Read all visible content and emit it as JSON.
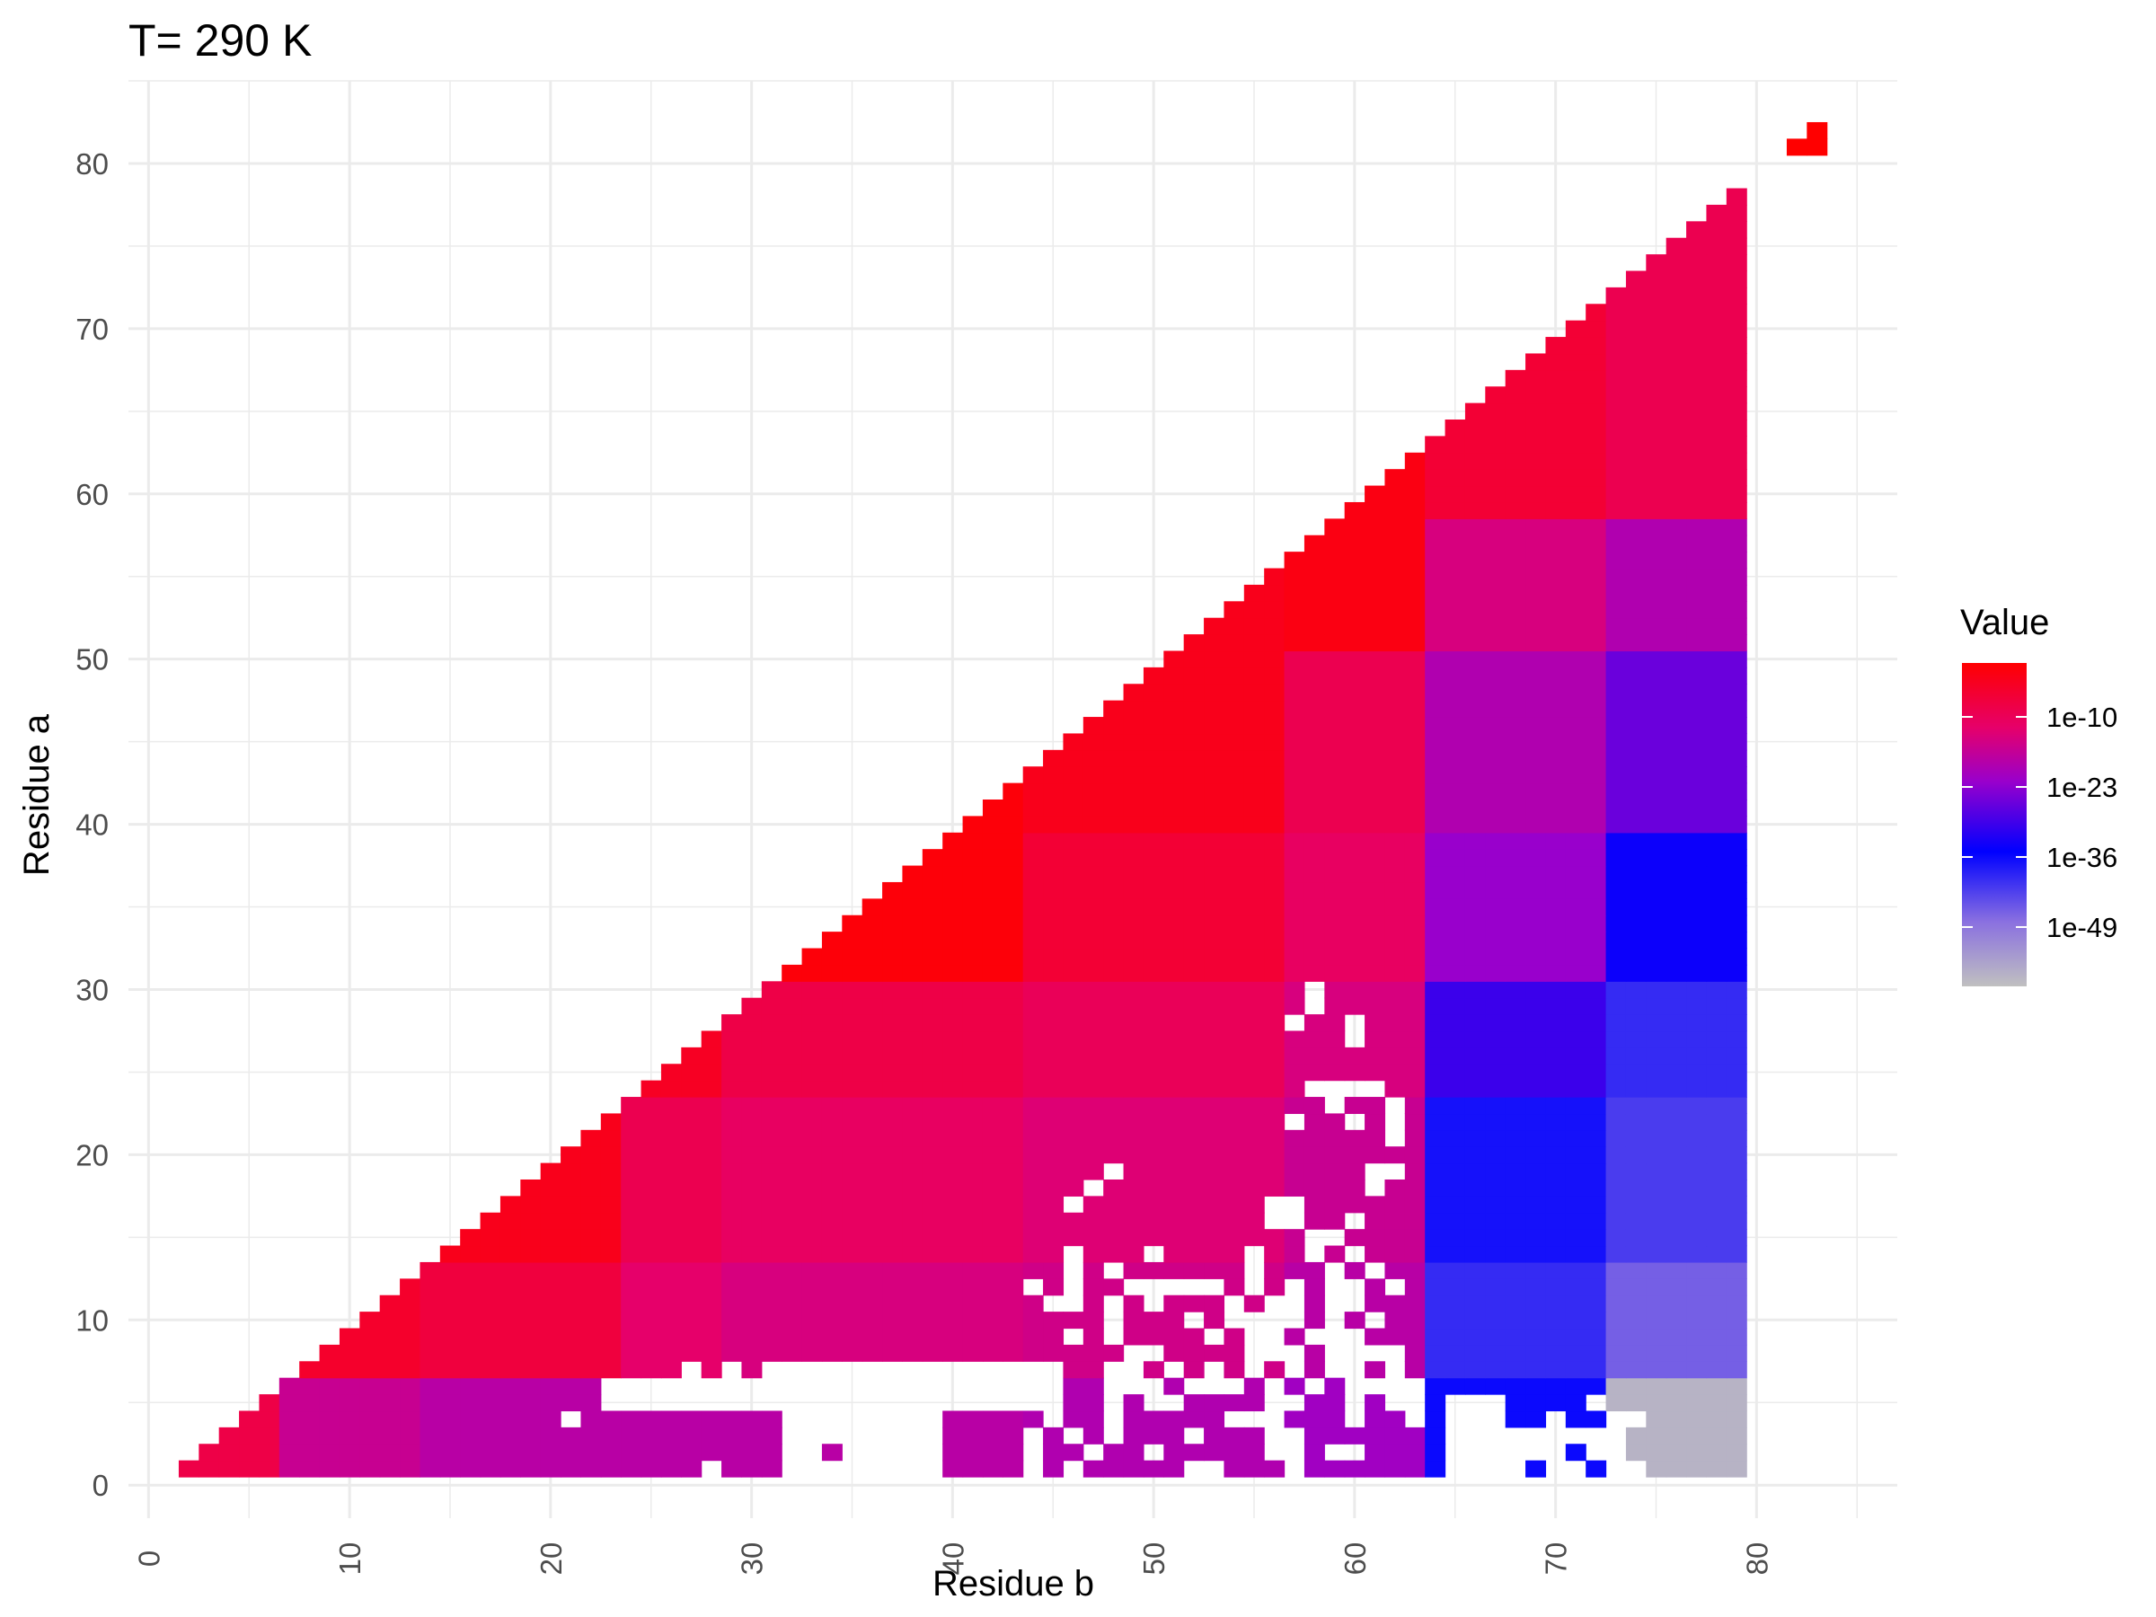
{
  "chart_data": {
    "type": "heatmap",
    "title": "T= 290 K",
    "xlabel": "Residue b",
    "ylabel": "Residue a",
    "xlim": [
      -1,
      87
    ],
    "ylim": [
      -2,
      85
    ],
    "x_ticks": [
      0,
      10,
      20,
      30,
      40,
      50,
      60,
      70,
      80
    ],
    "y_ticks": [
      0,
      10,
      20,
      30,
      40,
      50,
      60,
      70,
      80
    ],
    "grid": true,
    "legend": {
      "title": "Value",
      "position": "right",
      "scale": "log10",
      "labels": [
        "1e-10",
        "1e-23",
        "1e-36",
        "1e-49"
      ],
      "label_log_values": [
        -10,
        -23,
        -36,
        -49
      ],
      "range_log": [
        -60,
        0
      ],
      "gradient_stops": [
        {
          "log_value": 0,
          "color": "#ff0000"
        },
        {
          "log_value": -12,
          "color": "#e6006a"
        },
        {
          "log_value": -22,
          "color": "#9900cc"
        },
        {
          "log_value": -35,
          "color": "#0000ff"
        },
        {
          "log_value": -48,
          "color": "#8a70e0"
        },
        {
          "log_value": -60,
          "color": "#c0c0c0"
        }
      ]
    },
    "cells": {
      "description": "upper-triangular matrix; a from 1 to 78, b from a+1 to 79, plus a single point near (82, 82)",
      "b_max": 79,
      "extra_points": [
        {
          "a": 81,
          "b": 82,
          "log_value": 0
        },
        {
          "a": 82,
          "b": 83,
          "log_value": 0
        },
        {
          "a": 81,
          "b": 83,
          "log_value": 0
        }
      ],
      "rows_a_bands": [
        {
          "a_min": 1,
          "a_max": 6
        },
        {
          "a_min": 7,
          "a_max": 13
        },
        {
          "a_min": 14,
          "a_max": 23
        },
        {
          "a_min": 24,
          "a_max": 30
        },
        {
          "a_min": 31,
          "a_max": 39
        },
        {
          "a_min": 40,
          "a_max": 50
        },
        {
          "a_min": 51,
          "a_max": 58
        },
        {
          "a_min": 59,
          "a_max": 78
        }
      ],
      "cols_b_bands": [
        {
          "b_min": 1,
          "b_max": 6
        },
        {
          "b_min": 7,
          "b_max": 13
        },
        {
          "b_min": 14,
          "b_max": 23
        },
        {
          "b_min": 24,
          "b_max": 28
        },
        {
          "b_min": 29,
          "b_max": 43
        },
        {
          "b_min": 44,
          "b_max": 56
        },
        {
          "b_min": 57,
          "b_max": 63
        },
        {
          "b_min": 64,
          "b_max": 72
        },
        {
          "b_min": 73,
          "b_max": 79
        }
      ],
      "band_log_values": [
        [
          -8,
          -8,
          -8,
          -8,
          -8,
          -8,
          -8,
          -8
        ],
        [
          -16,
          -5,
          -5,
          -5,
          -5,
          -5,
          -5,
          -5
        ],
        [
          -18,
          -7,
          -3,
          -3,
          -3,
          -3,
          -3,
          -3
        ],
        [
          -18,
          -12,
          -9,
          -4,
          -4,
          -4,
          -4,
          -4
        ],
        [
          -18,
          -14,
          -11,
          -8,
          -1,
          -1,
          -1,
          -1
        ],
        [
          -19,
          -15,
          -13,
          -10,
          -6,
          -3,
          -3,
          -3
        ],
        [
          -21,
          -18,
          -16,
          -14,
          -11,
          -9,
          -2,
          -2
        ],
        [
          -36,
          -40,
          -37,
          -30,
          -22,
          -19,
          -14,
          -6
        ],
        [
          -58,
          -46,
          -42,
          -40,
          -34,
          -26,
          -19,
          -9
        ]
      ],
      "white_cells": [
        [
          1,
          28
        ],
        [
          1,
          32
        ],
        [
          1,
          33
        ],
        [
          1,
          34
        ],
        [
          1,
          35
        ],
        [
          1,
          36
        ],
        [
          1,
          37
        ],
        [
          1,
          38
        ],
        [
          1,
          39
        ],
        [
          1,
          44
        ],
        [
          1,
          46
        ],
        [
          1,
          52
        ],
        [
          1,
          53
        ],
        [
          1,
          57
        ],
        [
          1,
          65
        ],
        [
          1,
          66
        ],
        [
          1,
          67
        ],
        [
          1,
          68
        ],
        [
          1,
          70
        ],
        [
          1,
          71
        ],
        [
          1,
          73
        ],
        [
          1,
          74
        ],
        [
          2,
          32
        ],
        [
          2,
          33
        ],
        [
          2,
          35
        ],
        [
          2,
          36
        ],
        [
          2,
          37
        ],
        [
          2,
          38
        ],
        [
          2,
          39
        ],
        [
          2,
          44
        ],
        [
          2,
          47
        ],
        [
          2,
          50
        ],
        [
          2,
          56
        ],
        [
          2,
          57
        ],
        [
          2,
          59
        ],
        [
          2,
          60
        ],
        [
          2,
          65
        ],
        [
          2,
          66
        ],
        [
          2,
          67
        ],
        [
          2,
          68
        ],
        [
          2,
          69
        ],
        [
          2,
          70
        ],
        [
          2,
          72
        ],
        [
          2,
          73
        ],
        [
          3,
          32
        ],
        [
          3,
          33
        ],
        [
          3,
          34
        ],
        [
          3,
          35
        ],
        [
          3,
          36
        ],
        [
          3,
          37
        ],
        [
          3,
          38
        ],
        [
          3,
          39
        ],
        [
          3,
          44
        ],
        [
          3,
          46
        ],
        [
          3,
          48
        ],
        [
          3,
          52
        ],
        [
          3,
          56
        ],
        [
          3,
          57
        ],
        [
          3,
          65
        ],
        [
          3,
          66
        ],
        [
          3,
          67
        ],
        [
          3,
          68
        ],
        [
          3,
          69
        ],
        [
          3,
          70
        ],
        [
          3,
          71
        ],
        [
          3,
          72
        ],
        [
          3,
          73
        ],
        [
          4,
          21
        ],
        [
          4,
          32
        ],
        [
          4,
          33
        ],
        [
          4,
          34
        ],
        [
          4,
          35
        ],
        [
          4,
          36
        ],
        [
          4,
          37
        ],
        [
          4,
          38
        ],
        [
          4,
          39
        ],
        [
          4,
          45
        ],
        [
          4,
          48
        ],
        [
          4,
          54
        ],
        [
          4,
          55
        ],
        [
          4,
          56
        ],
        [
          4,
          60
        ],
        [
          4,
          63
        ],
        [
          4,
          65
        ],
        [
          4,
          66
        ],
        [
          4,
          67
        ],
        [
          4,
          70
        ],
        [
          4,
          73
        ],
        [
          4,
          74
        ],
        [
          5,
          23
        ],
        [
          5,
          24
        ],
        [
          5,
          25
        ],
        [
          5,
          26
        ],
        [
          5,
          27
        ],
        [
          5,
          28
        ],
        [
          5,
          29
        ],
        [
          5,
          30
        ],
        [
          5,
          31
        ],
        [
          5,
          32
        ],
        [
          5,
          33
        ],
        [
          5,
          34
        ],
        [
          5,
          35
        ],
        [
          5,
          36
        ],
        [
          5,
          37
        ],
        [
          5,
          38
        ],
        [
          5,
          39
        ],
        [
          5,
          40
        ],
        [
          5,
          41
        ],
        [
          5,
          42
        ],
        [
          5,
          43
        ],
        [
          5,
          44
        ],
        [
          5,
          45
        ],
        [
          5,
          48
        ],
        [
          5,
          50
        ],
        [
          5,
          51
        ],
        [
          5,
          56
        ],
        [
          5,
          57
        ],
        [
          5,
          60
        ],
        [
          5,
          62
        ],
        [
          5,
          63
        ],
        [
          5,
          65
        ],
        [
          5,
          66
        ],
        [
          5,
          67
        ],
        [
          5,
          72
        ],
        [
          6,
          23
        ],
        [
          6,
          24
        ],
        [
          6,
          25
        ],
        [
          6,
          26
        ],
        [
          6,
          27
        ],
        [
          6,
          28
        ],
        [
          6,
          29
        ],
        [
          6,
          30
        ],
        [
          6,
          31
        ],
        [
          6,
          32
        ],
        [
          6,
          33
        ],
        [
          6,
          34
        ],
        [
          6,
          35
        ],
        [
          6,
          36
        ],
        [
          6,
          37
        ],
        [
          6,
          38
        ],
        [
          6,
          39
        ],
        [
          6,
          40
        ],
        [
          6,
          41
        ],
        [
          6,
          42
        ],
        [
          6,
          43
        ],
        [
          6,
          44
        ],
        [
          6,
          45
        ],
        [
          6,
          48
        ],
        [
          6,
          49
        ],
        [
          6,
          50
        ],
        [
          6,
          52
        ],
        [
          6,
          53
        ],
        [
          6,
          54
        ],
        [
          6,
          56
        ],
        [
          6,
          58
        ],
        [
          6,
          60
        ],
        [
          6,
          61
        ],
        [
          6,
          62
        ],
        [
          6,
          63
        ],
        [
          7,
          27
        ],
        [
          7,
          29
        ],
        [
          7,
          31
        ],
        [
          7,
          32
        ],
        [
          7,
          33
        ],
        [
          7,
          34
        ],
        [
          7,
          35
        ],
        [
          7,
          36
        ],
        [
          7,
          37
        ],
        [
          7,
          38
        ],
        [
          7,
          39
        ],
        [
          7,
          40
        ],
        [
          7,
          41
        ],
        [
          7,
          42
        ],
        [
          7,
          43
        ],
        [
          7,
          44
        ],
        [
          7,
          45
        ],
        [
          7,
          48
        ],
        [
          7,
          49
        ],
        [
          7,
          51
        ],
        [
          7,
          53
        ],
        [
          7,
          55
        ],
        [
          7,
          57
        ],
        [
          7,
          59
        ],
        [
          7,
          60
        ],
        [
          7,
          62
        ],
        [
          8,
          49
        ],
        [
          8,
          50
        ],
        [
          8,
          55
        ],
        [
          8,
          56
        ],
        [
          8,
          57
        ],
        [
          8,
          59
        ],
        [
          8,
          60
        ],
        [
          8,
          61
        ],
        [
          8,
          62
        ],
        [
          9,
          46
        ],
        [
          9,
          48
        ],
        [
          9,
          53
        ],
        [
          9,
          55
        ],
        [
          9,
          56
        ],
        [
          9,
          58
        ],
        [
          9,
          59
        ],
        [
          9,
          60
        ],
        [
          10,
          48
        ],
        [
          10,
          52
        ],
        [
          10,
          54
        ],
        [
          10,
          55
        ],
        [
          10,
          56
        ],
        [
          10,
          57
        ],
        [
          10,
          59
        ],
        [
          10,
          61
        ],
        [
          11,
          45
        ],
        [
          11,
          46
        ],
        [
          11,
          48
        ],
        [
          11,
          50
        ],
        [
          11,
          54
        ],
        [
          11,
          56
        ],
        [
          11,
          57
        ],
        [
          11,
          59
        ],
        [
          11,
          60
        ],
        [
          12,
          44
        ],
        [
          12,
          46
        ],
        [
          12,
          49
        ],
        [
          12,
          50
        ],
        [
          12,
          51
        ],
        [
          12,
          52
        ],
        [
          12,
          53
        ],
        [
          12,
          55
        ],
        [
          12,
          57
        ],
        [
          12,
          59
        ],
        [
          12,
          60
        ],
        [
          12,
          62
        ],
        [
          13,
          46
        ],
        [
          13,
          48
        ],
        [
          13,
          55
        ],
        [
          13,
          59
        ],
        [
          13,
          61
        ],
        [
          14,
          46
        ],
        [
          14,
          50
        ],
        [
          14,
          55
        ],
        [
          14,
          58
        ],
        [
          14,
          60
        ],
        [
          15,
          58
        ],
        [
          15,
          59
        ],
        [
          16,
          56
        ],
        [
          16,
          57
        ],
        [
          16,
          60
        ],
        [
          17,
          46
        ],
        [
          17,
          56
        ],
        [
          17,
          57
        ],
        [
          18,
          47
        ],
        [
          18,
          61
        ],
        [
          19,
          48
        ],
        [
          19,
          61
        ],
        [
          19,
          62
        ],
        [
          21,
          62
        ],
        [
          22,
          57
        ],
        [
          22,
          60
        ],
        [
          22,
          62
        ],
        [
          23,
          59
        ],
        [
          23,
          62
        ],
        [
          24,
          58
        ],
        [
          24,
          59
        ],
        [
          24,
          60
        ],
        [
          24,
          61
        ],
        [
          27,
          60
        ],
        [
          28,
          57
        ],
        [
          28,
          60
        ],
        [
          29,
          58
        ],
        [
          30,
          58
        ]
      ]
    }
  }
}
